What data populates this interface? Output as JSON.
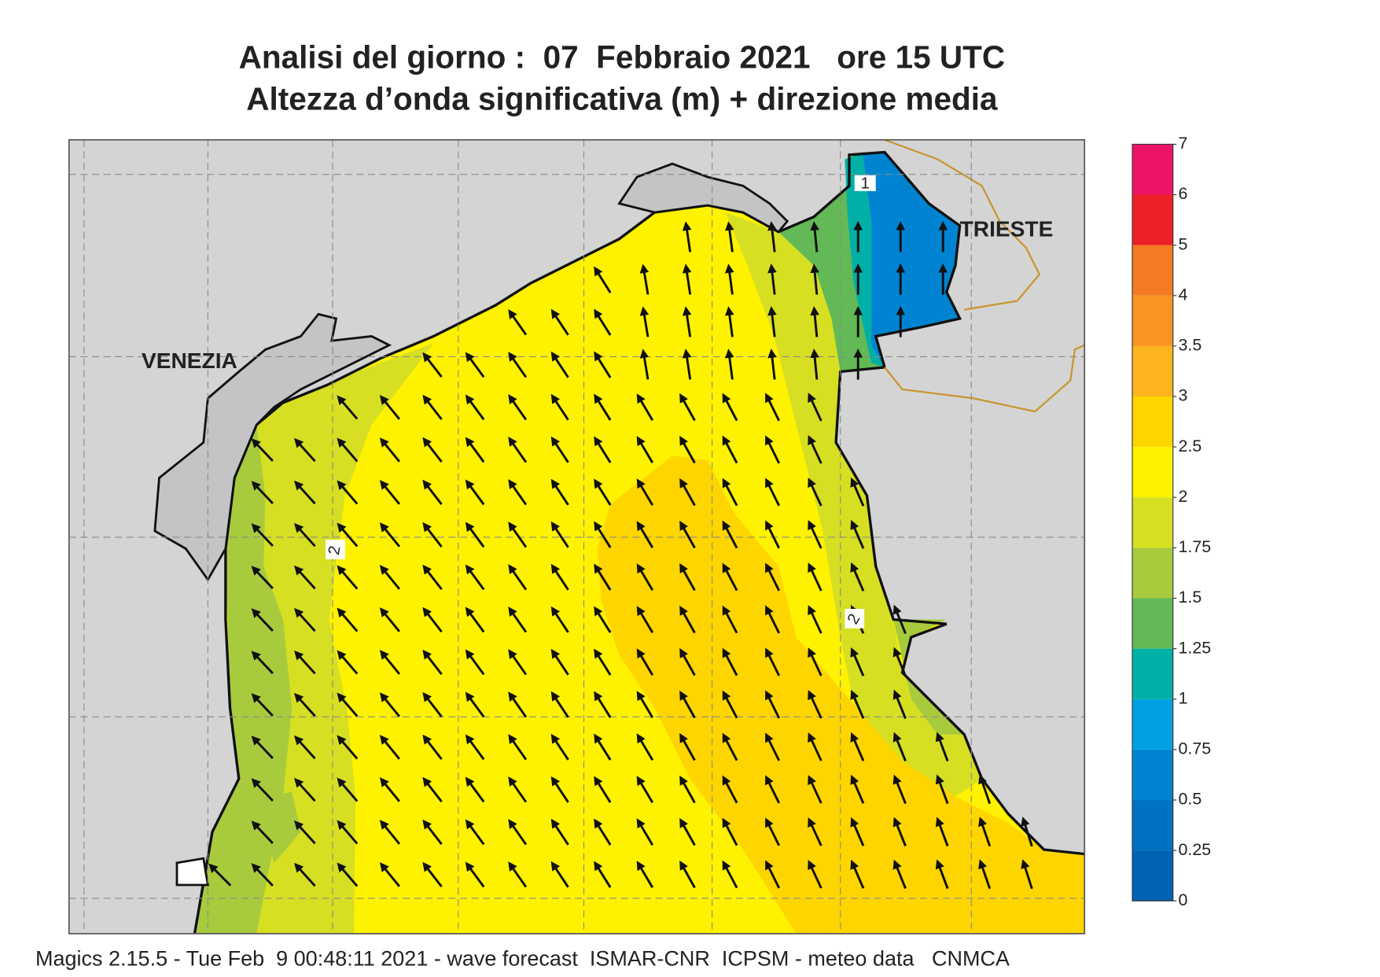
{
  "title": [
    "Analisi del giorno :  07  Febbraio 2021   ore 15 UTC",
    "Altezza d’onda significativa (m) + direzione media"
  ],
  "map": {
    "places": [
      "VENEZIA",
      "TRIESTE"
    ],
    "contour_labels": [
      2,
      2,
      1
    ]
  },
  "legend": {
    "levels": [
      0,
      0.25,
      0.5,
      0.75,
      1,
      1.25,
      1.5,
      1.75,
      2,
      2.5,
      3,
      3.5,
      4,
      5,
      6,
      7
    ],
    "colors": [
      "#0062b4",
      "#0072c4",
      "#0084d2",
      "#00a0e2",
      "#00b0a6",
      "#62b955",
      "#a8cb3e",
      "#d7df22",
      "#fff200",
      "#ffd500",
      "#fcb51c",
      "#f99322",
      "#f47a24",
      "#ec2027",
      "#ec1466"
    ]
  },
  "footer": "Magics 2.15.5 - Tue Feb  9 00:48:11 2021 - wave forecast  ISMAR-CNR  ICPSM - meteo data   CNMCA"
}
